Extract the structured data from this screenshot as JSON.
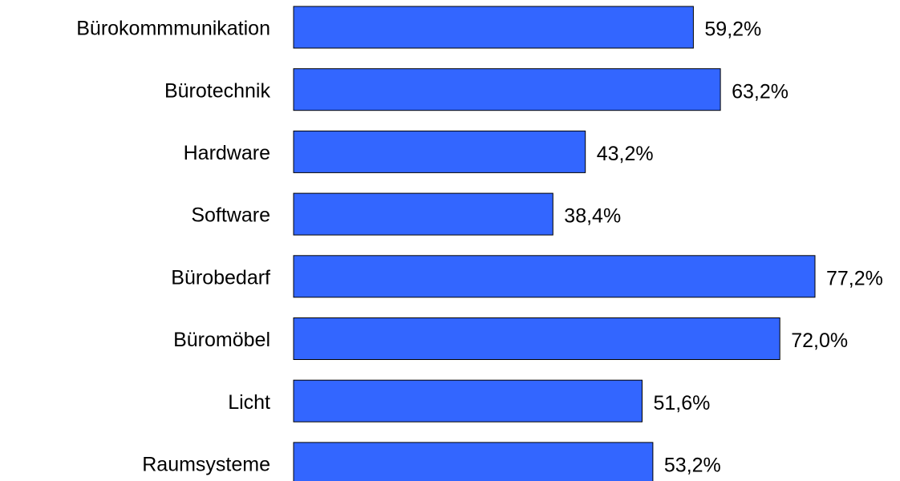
{
  "chart_data": {
    "type": "bar",
    "orientation": "horizontal",
    "categories": [
      "Bürokommmunikation",
      "Bürotechnik",
      "Hardware",
      "Software",
      "Bürobedarf",
      "Büromöbel",
      "Licht",
      "Raumsysteme"
    ],
    "values": [
      59.2,
      63.2,
      43.2,
      38.4,
      77.2,
      72.0,
      51.6,
      53.2
    ],
    "value_labels": [
      "59,2%",
      "63,2%",
      "43,2%",
      "38,4%",
      "77,2%",
      "72,0%",
      "51,6%",
      "53,2%"
    ],
    "bar_color": "#3366FF",
    "xlim": [
      0,
      77.2
    ],
    "grid": false,
    "legend": "none"
  }
}
